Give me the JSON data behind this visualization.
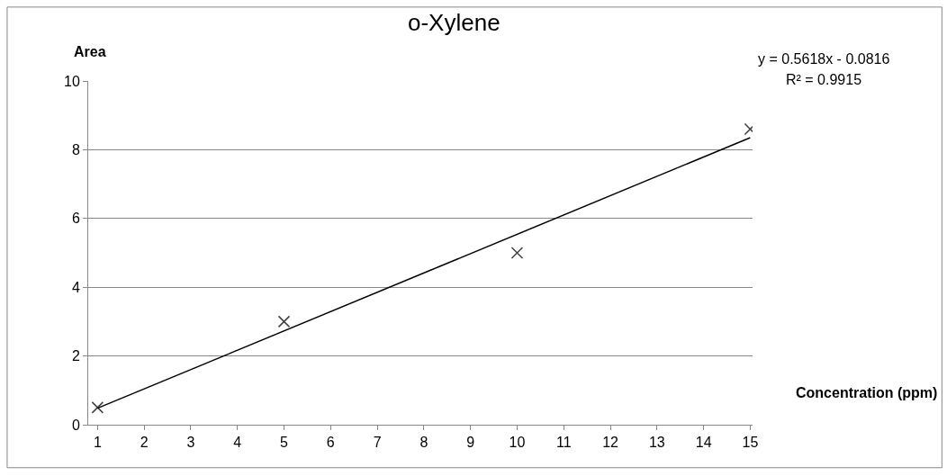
{
  "chart_data": {
    "type": "scatter",
    "title": "o-Xylene",
    "xlabel": "Concentration (ppm)",
    "ylabel": "Area",
    "annotations": [
      "y = 0.5618x - 0.0816",
      "R² = 0.9915"
    ],
    "series": [
      {
        "type": "scatter",
        "color": "#404040",
        "marker": "cross",
        "x": [
          1,
          5,
          10,
          15
        ],
        "values": [
          0.5,
          3.0,
          5.0,
          8.6
        ]
      },
      {
        "type": "line",
        "color": "#000000",
        "line_style": "solid",
        "x": [
          1,
          15
        ],
        "values": [
          0.48,
          8.35
        ]
      }
    ],
    "xlim": [
      0.8,
      15.05
    ],
    "xticks": [
      1,
      2,
      3,
      4,
      5,
      6,
      7,
      8,
      9,
      10,
      11,
      12,
      13,
      14,
      15
    ],
    "ylim": [
      0,
      10
    ],
    "yticks": [
      0,
      2,
      4,
      6,
      8,
      10
    ],
    "grid": "y"
  }
}
